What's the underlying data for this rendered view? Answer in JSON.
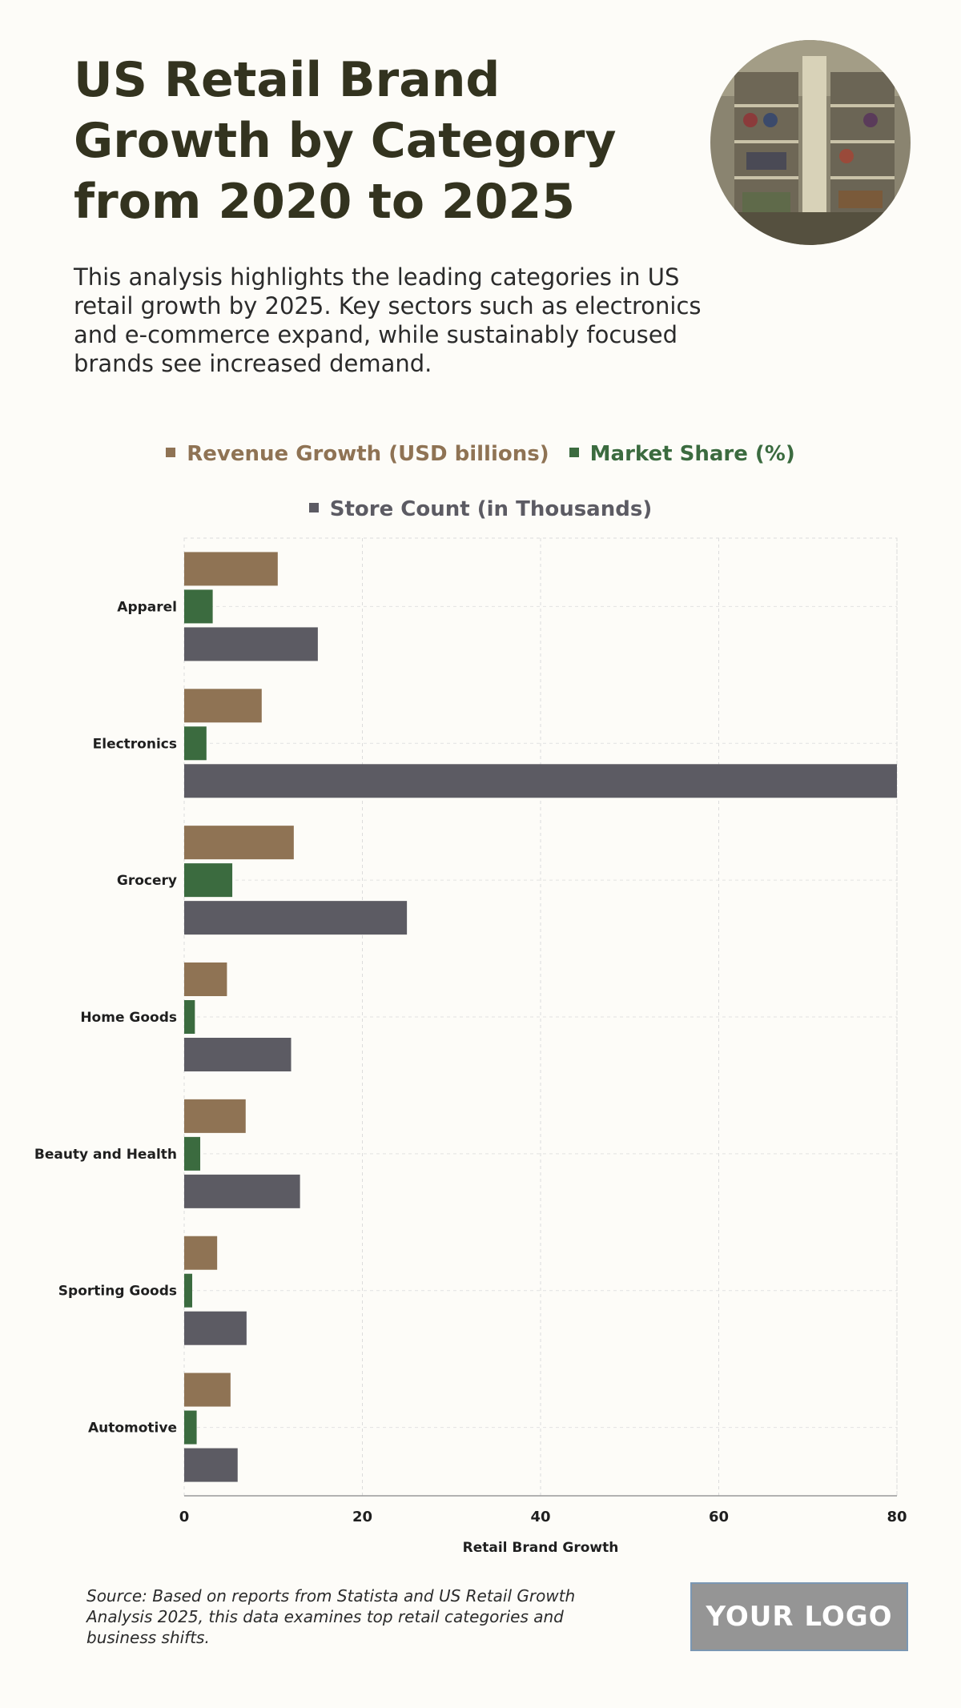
{
  "header": {
    "title": "US Retail Brand Growth by Category from 2020 to 2025",
    "subtitle": "This analysis highlights the leading categories in US retail growth by 2025. Key sectors such as electronics and e-commerce expand, while sustainably focused brands see increased demand."
  },
  "chart_data": {
    "type": "bar",
    "orientation": "horizontal",
    "categories": [
      "Apparel",
      "Electronics",
      "Grocery",
      "Home Goods",
      "Beauty and Health",
      "Sporting Goods",
      "Automotive"
    ],
    "series": [
      {
        "name": "Revenue Growth (USD billions)",
        "color": "#8f7354",
        "values": [
          10.5,
          8.7,
          12.3,
          4.8,
          6.9,
          3.7,
          5.2
        ]
      },
      {
        "name": "Market Share (%)",
        "color": "#3b6b3f",
        "values": [
          3.2,
          2.5,
          5.4,
          1.2,
          1.8,
          0.9,
          1.4
        ]
      },
      {
        "name": "Store Count (in Thousands)",
        "color": "#5c5b63",
        "values": [
          15,
          80,
          25,
          12,
          13,
          7,
          6
        ]
      }
    ],
    "xlabel": "Retail Brand Growth",
    "ylabel": "",
    "xlim": [
      0,
      80
    ],
    "xticks": [
      0,
      20,
      40,
      60,
      80
    ],
    "grid": true,
    "legend_position": "top-center"
  },
  "footer": {
    "source": "Source: Based on reports from Statista and US Retail Growth Analysis 2025, this data examines top retail categories and business shifts.",
    "logo": "YOUR LOGO"
  }
}
